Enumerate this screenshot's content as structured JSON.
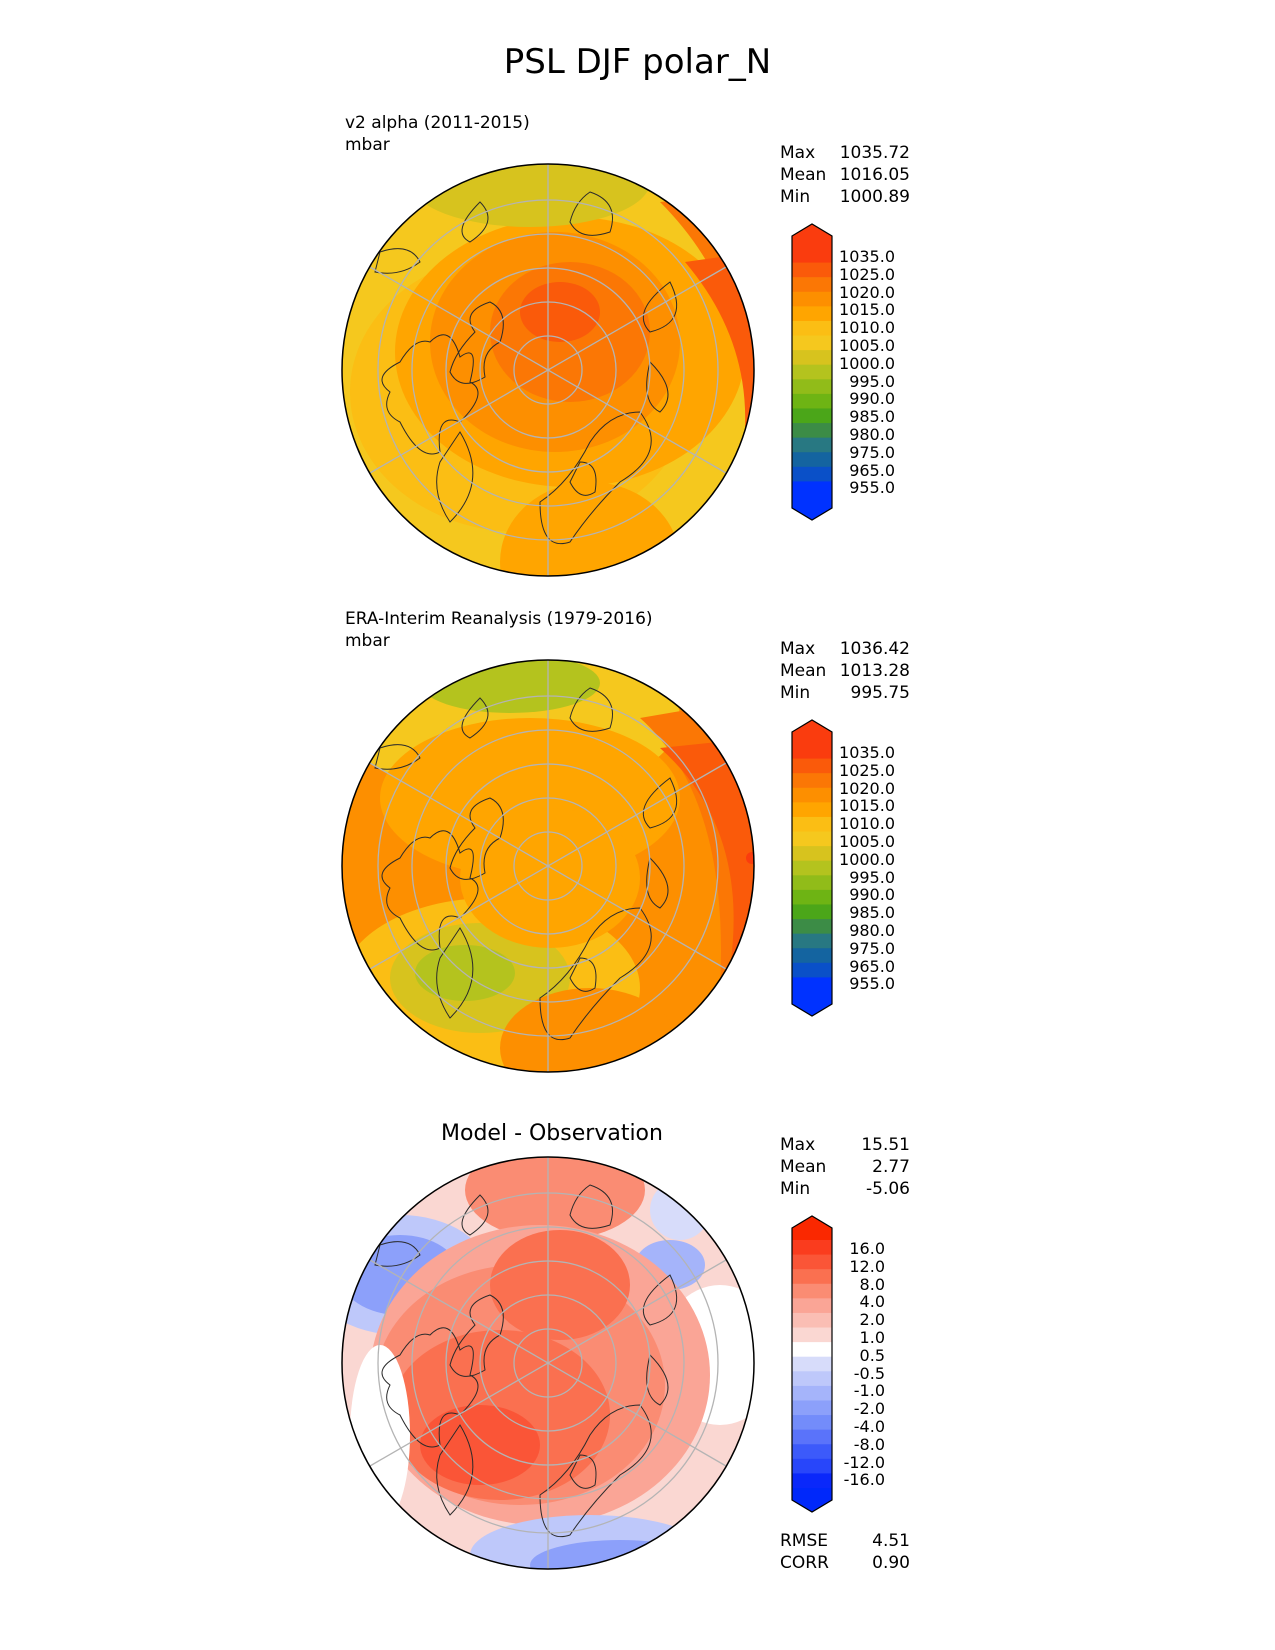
{
  "figure": {
    "title": "PSL DJF polar_N"
  },
  "panels": [
    {
      "id": "model",
      "title_line1": "v2 alpha (2011-2015)",
      "title_line2": "mbar",
      "stats": [
        {
          "label": "Max",
          "value": "1035.72"
        },
        {
          "label": "Mean",
          "value": "1016.05"
        },
        {
          "label": "Min",
          "value": "1000.89"
        }
      ],
      "colorbar": {
        "labels": [
          "1035.0",
          "1025.0",
          "1020.0",
          "1015.0",
          "1010.0",
          "1005.0",
          "1000.0",
          "995.0",
          "990.0",
          "985.0",
          "980.0",
          "975.0",
          "965.0",
          "955.0"
        ],
        "colors": [
          "#fa3c0e",
          "#fa5a0a",
          "#fb7705",
          "#fd8f00",
          "#ffa500",
          "#fbbe14",
          "#f5c81e",
          "#d7c31e",
          "#b4c31e",
          "#91bc19",
          "#6eb414",
          "#4ba619",
          "#3c8c46",
          "#287882",
          "#1464a0",
          "#0a50c8",
          "#0032ff"
        ],
        "top_color": "#fa3c0e",
        "bottom_color": "#0032ff"
      }
    },
    {
      "id": "obs",
      "title_line1": "ERA-Interim Reanalysis (1979-2016)",
      "title_line2": "mbar",
      "stats": [
        {
          "label": "Max",
          "value": "1036.42"
        },
        {
          "label": "Mean",
          "value": "1013.28"
        },
        {
          "label": "Min",
          "value": "995.75"
        }
      ],
      "colorbar": {
        "labels": [
          "1035.0",
          "1025.0",
          "1020.0",
          "1015.0",
          "1010.0",
          "1005.0",
          "1000.0",
          "995.0",
          "990.0",
          "985.0",
          "980.0",
          "975.0",
          "965.0",
          "955.0"
        ],
        "colors": [
          "#fa3c0e",
          "#fa5a0a",
          "#fb7705",
          "#fd8f00",
          "#ffa500",
          "#fbbe14",
          "#f5c81e",
          "#d7c31e",
          "#b4c31e",
          "#91bc19",
          "#6eb414",
          "#4ba619",
          "#3c8c46",
          "#287882",
          "#1464a0",
          "#0a50c8",
          "#0032ff"
        ],
        "top_color": "#fa3c0e",
        "bottom_color": "#0032ff"
      }
    },
    {
      "id": "diff",
      "title_line1": "Model - Observation",
      "stats": [
        {
          "label": "Max",
          "value": "15.51"
        },
        {
          "label": "Mean",
          "value": "2.77"
        },
        {
          "label": "Min",
          "value": "-5.06"
        }
      ],
      "metrics": [
        {
          "label": "RMSE",
          "value": "4.51"
        },
        {
          "label": "CORR",
          "value": "0.90"
        }
      ],
      "colorbar": {
        "labels": [
          "16.0",
          "12.0",
          "8.0",
          "4.0",
          "2.0",
          "1.0",
          "0.5",
          "-0.5",
          "-1.0",
          "-2.0",
          "-4.0",
          "-8.0",
          "-12.0",
          "-16.0"
        ],
        "colors": [
          "#fa3c1e",
          "#fa5537",
          "#fa7050",
          "#fa8c73",
          "#faa596",
          "#fabeb4",
          "#fad7d2",
          "#ffffff",
          "#d7dcfa",
          "#bec8fa",
          "#a5b4fa",
          "#8ca0fa",
          "#738cfa",
          "#5a73fa",
          "#3c5afa",
          "#2846fa",
          "#0a28fa"
        ],
        "top_color": "#fa2800",
        "bottom_color": "#0028fa"
      }
    }
  ]
}
